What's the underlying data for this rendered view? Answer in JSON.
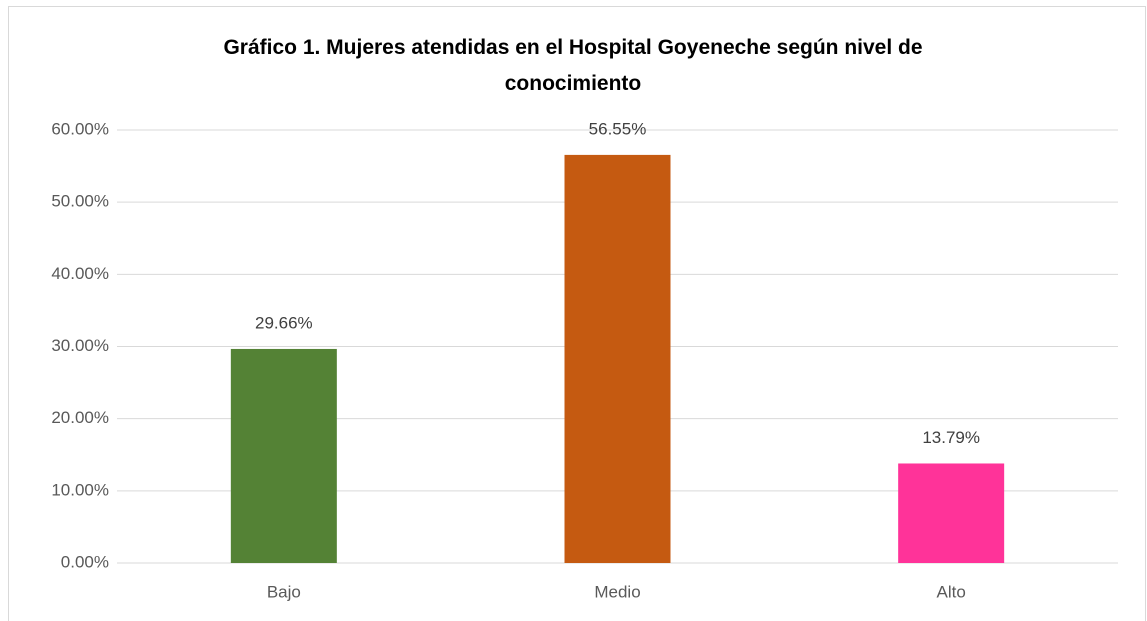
{
  "chart_data": {
    "type": "bar",
    "title": "Gráfico 1. Mujeres atendidas en el Hospital Goyeneche según nivel de conocimiento",
    "categories": [
      "Bajo",
      "Medio",
      "Alto"
    ],
    "values": [
      29.66,
      56.55,
      13.79
    ],
    "value_labels": [
      "29.66%",
      "56.55%",
      "13.79%"
    ],
    "colors": [
      "#548235",
      "#c55a11",
      "#ff3399"
    ],
    "ylim": [
      0,
      60
    ],
    "yticks": [
      {
        "value": 0,
        "label": "0.00%"
      },
      {
        "value": 10,
        "label": "10.00%"
      },
      {
        "value": 20,
        "label": "20.00%"
      },
      {
        "value": 30,
        "label": "30.00%"
      },
      {
        "value": 40,
        "label": "40.00%"
      },
      {
        "value": 50,
        "label": "50.00%"
      },
      {
        "value": 60,
        "label": "60.00%"
      }
    ],
    "grid": true
  }
}
